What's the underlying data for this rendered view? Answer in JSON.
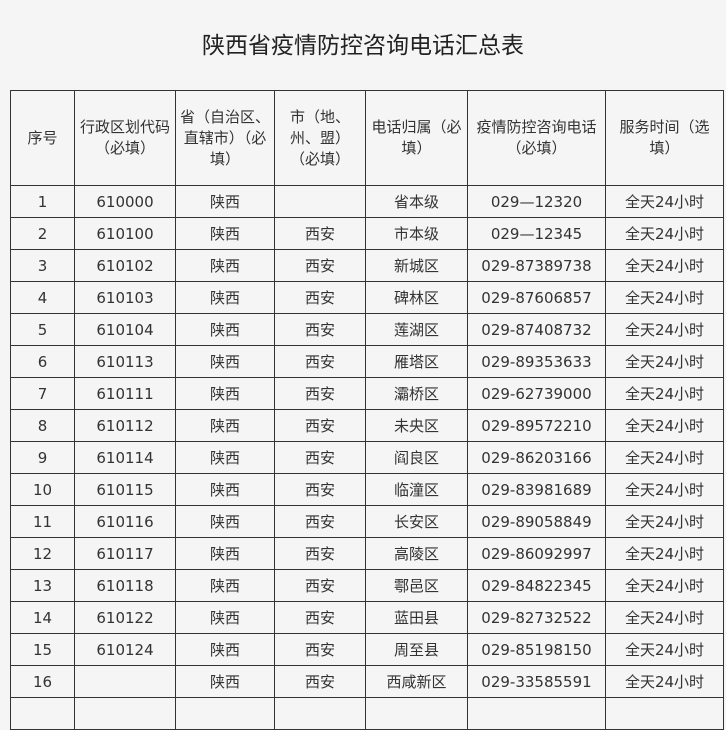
{
  "title": "陕西省疫情防控咨询电话汇总表",
  "headers": [
    "序号",
    "行政区划代码（必填）",
    "省（自治区、直辖市）（必填）",
    "市（地、州、盟）（必填）",
    "电话归属（必填）",
    "疫情防控咨询电话（必填）",
    "服务时间（选填）"
  ],
  "rows": [
    [
      "1",
      "610000",
      "陕西",
      "",
      "省本级",
      "029—12320",
      "全天24小时"
    ],
    [
      "2",
      "610100",
      "陕西",
      "西安",
      "市本级",
      "029—12345",
      "全天24小时"
    ],
    [
      "3",
      "610102",
      "陕西",
      "西安",
      "新城区",
      "029-87389738",
      "全天24小时"
    ],
    [
      "4",
      "610103",
      "陕西",
      "西安",
      "碑林区",
      "029-87606857",
      "全天24小时"
    ],
    [
      "5",
      "610104",
      "陕西",
      "西安",
      "莲湖区",
      "029-87408732",
      "全天24小时"
    ],
    [
      "6",
      "610113",
      "陕西",
      "西安",
      "雁塔区",
      "029-89353633",
      "全天24小时"
    ],
    [
      "7",
      "610111",
      "陕西",
      "西安",
      "灞桥区",
      "029-62739000",
      "全天24小时"
    ],
    [
      "8",
      "610112",
      "陕西",
      "西安",
      "未央区",
      "029-89572210",
      "全天24小时"
    ],
    [
      "9",
      "610114",
      "陕西",
      "西安",
      "阎良区",
      "029-86203166",
      "全天24小时"
    ],
    [
      "10",
      "610115",
      "陕西",
      "西安",
      "临潼区",
      "029-83981689",
      "全天24小时"
    ],
    [
      "11",
      "610116",
      "陕西",
      "西安",
      "长安区",
      "029-89058849",
      "全天24小时"
    ],
    [
      "12",
      "610117",
      "陕西",
      "西安",
      "高陵区",
      "029-86092997",
      "全天24小时"
    ],
    [
      "13",
      "610118",
      "陕西",
      "西安",
      "鄠邑区",
      "029-84822345",
      "全天24小时"
    ],
    [
      "14",
      "610122",
      "陕西",
      "西安",
      "蓝田县",
      "029-82732522",
      "全天24小时"
    ],
    [
      "15",
      "610124",
      "陕西",
      "西安",
      "周至县",
      "029-85198150",
      "全天24小时"
    ],
    [
      "16",
      "",
      "陕西",
      "西安",
      "西咸新区",
      "029-33585591",
      "全天24小时"
    ]
  ]
}
